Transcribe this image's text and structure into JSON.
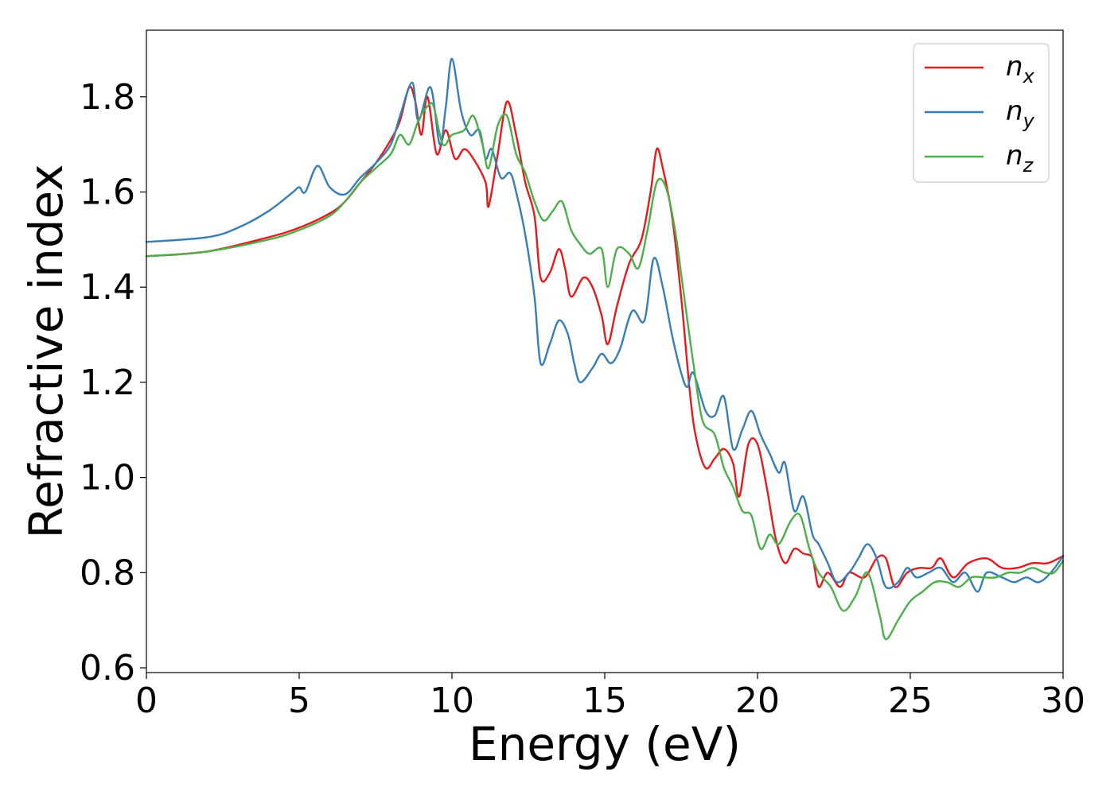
{
  "chart_data": {
    "type": "line",
    "xlabel": "Energy (eV)",
    "ylabel": "Refractive index",
    "xlim": [
      0,
      30
    ],
    "ylim": [
      0.59,
      1.94
    ],
    "xticks": [
      0,
      5,
      10,
      15,
      20,
      25,
      30
    ],
    "xtick_labels": [
      "0",
      "5",
      "10",
      "15",
      "20",
      "25",
      "30"
    ],
    "yticks": [
      0.6,
      0.8,
      1.0,
      1.2,
      1.4,
      1.6,
      1.8
    ],
    "ytick_labels": [
      "0.6",
      "0.8",
      "1.0",
      "1.2",
      "1.4",
      "1.6",
      "1.8"
    ],
    "legend_position": "top-right",
    "grid": false,
    "series": [
      {
        "name": "n",
        "subscript": "x",
        "color": "#e41a1c",
        "points": [
          [
            0,
            1.465
          ],
          [
            2,
            1.475
          ],
          [
            4,
            1.505
          ],
          [
            5,
            1.525
          ],
          [
            6,
            1.555
          ],
          [
            6.5,
            1.58
          ],
          [
            7,
            1.62
          ],
          [
            7.5,
            1.66
          ],
          [
            8,
            1.71
          ],
          [
            8.3,
            1.75
          ],
          [
            8.6,
            1.82
          ],
          [
            8.8,
            1.79
          ],
          [
            9,
            1.72
          ],
          [
            9.2,
            1.8
          ],
          [
            9.5,
            1.68
          ],
          [
            9.8,
            1.73
          ],
          [
            10.1,
            1.67
          ],
          [
            10.4,
            1.69
          ],
          [
            10.7,
            1.67
          ],
          [
            11.1,
            1.62
          ],
          [
            11.2,
            1.57
          ],
          [
            11.5,
            1.68
          ],
          [
            11.8,
            1.79
          ],
          [
            12.1,
            1.72
          ],
          [
            12.4,
            1.62
          ],
          [
            12.7,
            1.55
          ],
          [
            12.9,
            1.42
          ],
          [
            13.2,
            1.43
          ],
          [
            13.5,
            1.48
          ],
          [
            13.7,
            1.44
          ],
          [
            13.9,
            1.38
          ],
          [
            14.3,
            1.42
          ],
          [
            14.6,
            1.4
          ],
          [
            14.9,
            1.34
          ],
          [
            15.1,
            1.28
          ],
          [
            15.4,
            1.36
          ],
          [
            15.8,
            1.45
          ],
          [
            16.2,
            1.5
          ],
          [
            16.5,
            1.6
          ],
          [
            16.7,
            1.69
          ],
          [
            16.9,
            1.65
          ],
          [
            17.2,
            1.55
          ],
          [
            17.5,
            1.38
          ],
          [
            17.8,
            1.17
          ],
          [
            18.0,
            1.08
          ],
          [
            18.3,
            1.02
          ],
          [
            18.6,
            1.04
          ],
          [
            18.9,
            1.06
          ],
          [
            19.2,
            1.03
          ],
          [
            19.4,
            0.96
          ],
          [
            19.7,
            1.07
          ],
          [
            20.0,
            1.07
          ],
          [
            20.3,
            0.98
          ],
          [
            20.6,
            0.87
          ],
          [
            20.9,
            0.82
          ],
          [
            21.2,
            0.85
          ],
          [
            21.5,
            0.84
          ],
          [
            21.8,
            0.83
          ],
          [
            22.0,
            0.77
          ],
          [
            22.3,
            0.8
          ],
          [
            22.7,
            0.77
          ],
          [
            23.0,
            0.8
          ],
          [
            23.5,
            0.79
          ],
          [
            23.9,
            0.83
          ],
          [
            24.2,
            0.83
          ],
          [
            24.5,
            0.77
          ],
          [
            24.9,
            0.8
          ],
          [
            25.3,
            0.81
          ],
          [
            25.7,
            0.81
          ],
          [
            26.0,
            0.83
          ],
          [
            26.4,
            0.79
          ],
          [
            26.9,
            0.82
          ],
          [
            27.5,
            0.83
          ],
          [
            28.0,
            0.81
          ],
          [
            28.5,
            0.81
          ],
          [
            29.0,
            0.82
          ],
          [
            29.5,
            0.82
          ],
          [
            30.0,
            0.835
          ]
        ]
      },
      {
        "name": "n",
        "subscript": "y",
        "color": "#377eb8",
        "points": [
          [
            0,
            1.495
          ],
          [
            2,
            1.505
          ],
          [
            3,
            1.525
          ],
          [
            4,
            1.56
          ],
          [
            4.8,
            1.6
          ],
          [
            5.0,
            1.61
          ],
          [
            5.2,
            1.6
          ],
          [
            5.6,
            1.655
          ],
          [
            6.0,
            1.61
          ],
          [
            6.5,
            1.595
          ],
          [
            7.0,
            1.63
          ],
          [
            7.5,
            1.66
          ],
          [
            8.0,
            1.7
          ],
          [
            8.3,
            1.76
          ],
          [
            8.7,
            1.83
          ],
          [
            8.9,
            1.75
          ],
          [
            9.3,
            1.82
          ],
          [
            9.6,
            1.7
          ],
          [
            9.8,
            1.78
          ],
          [
            10.0,
            1.88
          ],
          [
            10.3,
            1.77
          ],
          [
            10.6,
            1.72
          ],
          [
            10.9,
            1.73
          ],
          [
            11.1,
            1.67
          ],
          [
            11.3,
            1.69
          ],
          [
            11.6,
            1.63
          ],
          [
            11.9,
            1.64
          ],
          [
            12.1,
            1.6
          ],
          [
            12.4,
            1.51
          ],
          [
            12.7,
            1.38
          ],
          [
            12.9,
            1.24
          ],
          [
            13.2,
            1.28
          ],
          [
            13.5,
            1.33
          ],
          [
            13.8,
            1.3
          ],
          [
            14.0,
            1.24
          ],
          [
            14.2,
            1.2
          ],
          [
            14.6,
            1.23
          ],
          [
            14.9,
            1.26
          ],
          [
            15.2,
            1.24
          ],
          [
            15.5,
            1.27
          ],
          [
            15.9,
            1.35
          ],
          [
            16.3,
            1.33
          ],
          [
            16.6,
            1.46
          ],
          [
            16.9,
            1.4
          ],
          [
            17.2,
            1.3
          ],
          [
            17.5,
            1.22
          ],
          [
            17.7,
            1.19
          ],
          [
            17.9,
            1.22
          ],
          [
            18.3,
            1.14
          ],
          [
            18.6,
            1.13
          ],
          [
            18.9,
            1.17
          ],
          [
            19.2,
            1.06
          ],
          [
            19.5,
            1.1
          ],
          [
            19.8,
            1.14
          ],
          [
            20.1,
            1.09
          ],
          [
            20.4,
            1.05
          ],
          [
            20.7,
            1.01
          ],
          [
            20.9,
            1.03
          ],
          [
            21.2,
            0.93
          ],
          [
            21.5,
            0.96
          ],
          [
            21.8,
            0.88
          ],
          [
            22.0,
            0.86
          ],
          [
            22.3,
            0.82
          ],
          [
            22.6,
            0.78
          ],
          [
            23.0,
            0.8
          ],
          [
            23.3,
            0.83
          ],
          [
            23.6,
            0.86
          ],
          [
            23.9,
            0.83
          ],
          [
            24.2,
            0.77
          ],
          [
            24.6,
            0.78
          ],
          [
            24.9,
            0.81
          ],
          [
            25.2,
            0.79
          ],
          [
            25.6,
            0.8
          ],
          [
            26.0,
            0.81
          ],
          [
            26.4,
            0.78
          ],
          [
            26.8,
            0.8
          ],
          [
            27.2,
            0.76
          ],
          [
            27.5,
            0.8
          ],
          [
            28.0,
            0.79
          ],
          [
            28.4,
            0.78
          ],
          [
            28.8,
            0.79
          ],
          [
            29.2,
            0.78
          ],
          [
            29.6,
            0.8
          ],
          [
            30.0,
            0.835
          ]
        ]
      },
      {
        "name": "n",
        "subscript": "z",
        "color": "#4daf4a",
        "points": [
          [
            0,
            1.465
          ],
          [
            2,
            1.475
          ],
          [
            4,
            1.5
          ],
          [
            5,
            1.52
          ],
          [
            6,
            1.55
          ],
          [
            6.5,
            1.58
          ],
          [
            7,
            1.62
          ],
          [
            7.5,
            1.65
          ],
          [
            8.0,
            1.68
          ],
          [
            8.3,
            1.72
          ],
          [
            8.6,
            1.7
          ],
          [
            8.9,
            1.75
          ],
          [
            9.2,
            1.78
          ],
          [
            9.4,
            1.78
          ],
          [
            9.7,
            1.7
          ],
          [
            10.0,
            1.72
          ],
          [
            10.4,
            1.73
          ],
          [
            10.7,
            1.76
          ],
          [
            11.0,
            1.7
          ],
          [
            11.2,
            1.65
          ],
          [
            11.5,
            1.74
          ],
          [
            11.8,
            1.76
          ],
          [
            12.1,
            1.68
          ],
          [
            12.4,
            1.64
          ],
          [
            12.7,
            1.58
          ],
          [
            13.0,
            1.54
          ],
          [
            13.3,
            1.56
          ],
          [
            13.6,
            1.58
          ],
          [
            13.9,
            1.52
          ],
          [
            14.2,
            1.49
          ],
          [
            14.5,
            1.47
          ],
          [
            14.9,
            1.48
          ],
          [
            15.1,
            1.4
          ],
          [
            15.4,
            1.48
          ],
          [
            15.8,
            1.47
          ],
          [
            16.1,
            1.44
          ],
          [
            16.4,
            1.52
          ],
          [
            16.7,
            1.62
          ],
          [
            17.0,
            1.61
          ],
          [
            17.3,
            1.52
          ],
          [
            17.6,
            1.38
          ],
          [
            17.9,
            1.24
          ],
          [
            18.2,
            1.12
          ],
          [
            18.6,
            1.09
          ],
          [
            18.9,
            1.02
          ],
          [
            19.2,
            0.98
          ],
          [
            19.5,
            0.93
          ],
          [
            19.8,
            0.92
          ],
          [
            20.1,
            0.85
          ],
          [
            20.4,
            0.88
          ],
          [
            20.7,
            0.86
          ],
          [
            21.1,
            0.91
          ],
          [
            21.4,
            0.92
          ],
          [
            21.7,
            0.85
          ],
          [
            22.0,
            0.8
          ],
          [
            22.4,
            0.77
          ],
          [
            22.8,
            0.72
          ],
          [
            23.2,
            0.75
          ],
          [
            23.6,
            0.8
          ],
          [
            24.0,
            0.71
          ],
          [
            24.2,
            0.66
          ],
          [
            24.6,
            0.7
          ],
          [
            25.0,
            0.74
          ],
          [
            25.4,
            0.76
          ],
          [
            25.8,
            0.78
          ],
          [
            26.2,
            0.78
          ],
          [
            26.6,
            0.77
          ],
          [
            27.0,
            0.79
          ],
          [
            27.4,
            0.79
          ],
          [
            27.8,
            0.79
          ],
          [
            28.2,
            0.8
          ],
          [
            28.6,
            0.8
          ],
          [
            29.0,
            0.81
          ],
          [
            29.4,
            0.8
          ],
          [
            29.7,
            0.8
          ],
          [
            30.0,
            0.825
          ]
        ]
      }
    ]
  }
}
